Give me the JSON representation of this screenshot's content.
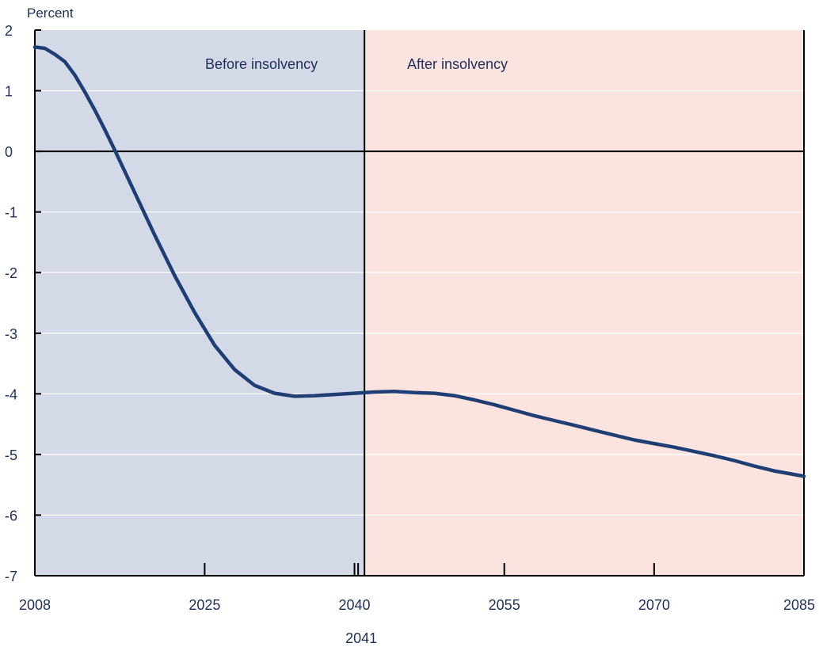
{
  "colors": {
    "before_region": "#d3d9e6",
    "after_region": "#fbe4df",
    "line": "#1f3f74",
    "axis": "#000000",
    "grid": "#ffffff",
    "text": "#1f2f5a"
  },
  "chart_data": {
    "type": "line",
    "ylabel": "Percent",
    "ylim": [
      -7,
      2
    ],
    "xlim": [
      2008,
      2085
    ],
    "y_ticks": [
      2,
      1,
      0,
      -1,
      -2,
      -3,
      -4,
      -5,
      -6,
      -7
    ],
    "y_tick_labels": [
      "2",
      "1",
      "0",
      "-1",
      "-2",
      "-3",
      "-4",
      "-5",
      "-6",
      "-7"
    ],
    "x_ticks": [
      2008,
      2025,
      2040,
      2055,
      2070,
      2085
    ],
    "x_tick_labels": [
      "2008",
      "2025",
      "2040",
      "2055",
      "2070",
      "2085"
    ],
    "insolvency_year": 2041,
    "insolvency_label": "2041",
    "regions": [
      {
        "label": "Before insolvency",
        "from": 2008,
        "to": 2041
      },
      {
        "label": "After insolvency",
        "from": 2041,
        "to": 2085
      }
    ],
    "grid": true,
    "series": [
      {
        "x": [
          2008,
          2009,
          2010,
          2011,
          2012,
          2013,
          2014,
          2015,
          2016,
          2018,
          2020,
          2022,
          2024,
          2026,
          2028,
          2030,
          2032,
          2034,
          2036,
          2038,
          2040,
          2042,
          2044,
          2046,
          2048,
          2050,
          2052,
          2054,
          2056,
          2058,
          2060,
          2062,
          2064,
          2066,
          2068,
          2070,
          2072,
          2074,
          2076,
          2078,
          2080,
          2082,
          2085
        ],
        "y": [
          1.72,
          1.7,
          1.6,
          1.48,
          1.26,
          0.98,
          0.68,
          0.36,
          0.02,
          -0.68,
          -1.38,
          -2.05,
          -2.66,
          -3.2,
          -3.6,
          -3.86,
          -3.99,
          -4.04,
          -4.03,
          -4.01,
          -3.99,
          -3.97,
          -3.96,
          -3.98,
          -3.99,
          -4.03,
          -4.1,
          -4.18,
          -4.27,
          -4.36,
          -4.44,
          -4.52,
          -4.6,
          -4.68,
          -4.76,
          -4.82,
          -4.88,
          -4.95,
          -5.02,
          -5.1,
          -5.19,
          -5.27,
          -5.36
        ]
      }
    ]
  }
}
